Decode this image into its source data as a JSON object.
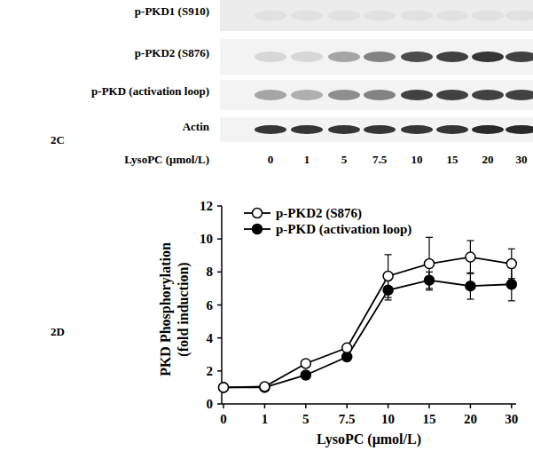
{
  "blot": {
    "panel_label": "2C",
    "rows": [
      "p-PKD1 (S910)",
      "p-PKD2 (S876)",
      "p-PKD (activation loop)",
      "Actin"
    ],
    "lane_title": "LysoPC (μmol/L)",
    "lanes": [
      "0",
      "1",
      "5",
      "7.5",
      "10",
      "15",
      "20",
      "30"
    ]
  },
  "chart_data": {
    "type": "line",
    "panel_label": "2D",
    "xlabel": "LysoPC (μmol/L)",
    "ylabel": [
      "PKD Phosphorylation",
      "(fold induction)"
    ],
    "categories": [
      "0",
      "1",
      "5",
      "7.5",
      "10",
      "15",
      "20",
      "30"
    ],
    "series": [
      {
        "name": "p-PKD2 (S876)",
        "color": "#000000",
        "marker": "open-circle",
        "values": [
          1,
          1.05,
          2.45,
          3.4,
          7.75,
          8.5,
          8.9,
          8.5
        ],
        "errors": [
          0,
          0,
          0,
          0,
          1.3,
          1.6,
          1.0,
          0.9
        ]
      },
      {
        "name": "p-PKD (activation loop)",
        "color": "#000000",
        "marker": "filled-circle",
        "values": [
          1,
          1.0,
          1.75,
          2.85,
          6.9,
          7.5,
          7.15,
          7.25
        ],
        "errors": [
          0,
          0,
          0,
          0,
          0.6,
          0.5,
          0.8,
          1.0
        ]
      }
    ],
    "ylim": [
      0,
      12
    ],
    "yticks": [
      0,
      2,
      4,
      6,
      8,
      10,
      12
    ],
    "legend": "top-left",
    "grid": false
  }
}
